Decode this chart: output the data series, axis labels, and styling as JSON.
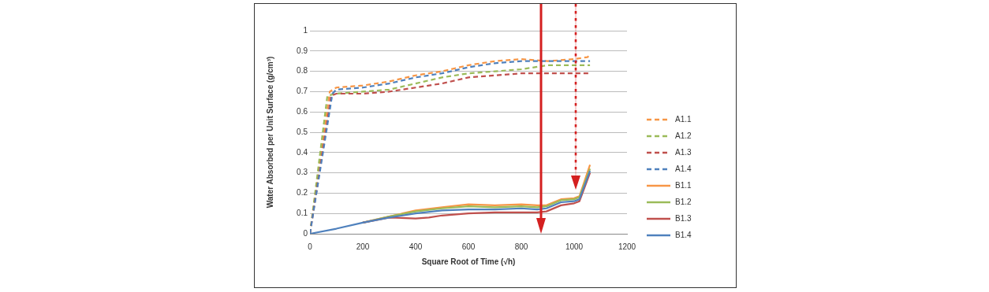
{
  "chart_data": {
    "type": "line",
    "xlabel": "Square Root of Time (√h)",
    "ylabel": "Water Absorbed per Unit Surface (g/cm³)",
    "xlim": [
      0,
      1200
    ],
    "xticks": [
      0,
      200,
      400,
      600,
      800,
      1000,
      1200
    ],
    "ylim": [
      0,
      1
    ],
    "yticks": [
      0,
      0.1,
      0.2,
      0.3,
      0.4,
      0.5,
      0.6,
      0.7,
      0.8,
      0.9,
      1
    ],
    "grid": "y",
    "legend": "right",
    "marker": "none",
    "series": [
      {
        "name": "A1.1",
        "color": "#f79646",
        "line_style": "dashed",
        "x": [
          0,
          75,
          100,
          200,
          300,
          400,
          500,
          600,
          700,
          800,
          900,
          1000,
          1050,
          1060
        ],
        "values": [
          0,
          0.7,
          0.72,
          0.73,
          0.75,
          0.78,
          0.8,
          0.83,
          0.85,
          0.86,
          0.85,
          0.86,
          0.87,
          0.88
        ]
      },
      {
        "name": "A1.2",
        "color": "#9bbb59",
        "line_style": "dashed",
        "x": [
          0,
          66,
          100,
          200,
          300,
          400,
          500,
          600,
          700,
          800,
          900,
          1060
        ],
        "values": [
          0,
          0.68,
          0.69,
          0.7,
          0.71,
          0.74,
          0.77,
          0.79,
          0.8,
          0.81,
          0.83,
          0.83
        ]
      },
      {
        "name": "A1.3",
        "color": "#c0504d",
        "line_style": "dashed",
        "x": [
          0,
          80,
          100,
          200,
          300,
          400,
          500,
          600,
          700,
          800,
          1060
        ],
        "values": [
          0,
          0.68,
          0.69,
          0.69,
          0.7,
          0.72,
          0.74,
          0.77,
          0.78,
          0.79,
          0.79
        ]
      },
      {
        "name": "A1.4",
        "color": "#4f81bd",
        "line_style": "dashed",
        "x": [
          0,
          85,
          100,
          200,
          300,
          400,
          500,
          600,
          700,
          800,
          900,
          1060
        ],
        "values": [
          0,
          0.69,
          0.71,
          0.72,
          0.74,
          0.77,
          0.79,
          0.82,
          0.84,
          0.85,
          0.85,
          0.85
        ]
      },
      {
        "name": "B1.1",
        "color": "#f79646",
        "line_style": "solid",
        "x": [
          200,
          300,
          400,
          500,
          600,
          700,
          800,
          860,
          895,
          950,
          1000,
          1020,
          1060
        ],
        "values": [
          0.055,
          0.085,
          0.115,
          0.13,
          0.145,
          0.14,
          0.145,
          0.14,
          0.14,
          0.17,
          0.175,
          0.185,
          0.34
        ]
      },
      {
        "name": "B1.2",
        "color": "#9bbb59",
        "line_style": "solid",
        "x": [
          200,
          300,
          400,
          500,
          600,
          700,
          800,
          860,
          895,
          950,
          1000,
          1020,
          1060
        ],
        "values": [
          0.055,
          0.085,
          0.11,
          0.125,
          0.135,
          0.13,
          0.135,
          0.13,
          0.135,
          0.165,
          0.17,
          0.18,
          0.32
        ]
      },
      {
        "name": "B1.3",
        "color": "#c0504d",
        "line_style": "solid",
        "x": [
          200,
          300,
          400,
          450,
          500,
          600,
          700,
          800,
          860,
          895,
          950,
          1000,
          1020,
          1060
        ],
        "values": [
          0.055,
          0.08,
          0.075,
          0.08,
          0.09,
          0.1,
          0.105,
          0.105,
          0.105,
          0.11,
          0.14,
          0.15,
          0.16,
          0.3
        ]
      },
      {
        "name": "B1.4",
        "color": "#4f81bd",
        "line_style": "solid",
        "x": [
          0,
          100,
          200,
          300,
          400,
          500,
          600,
          700,
          800,
          860,
          895,
          950,
          1000,
          1020,
          1060
        ],
        "values": [
          0,
          0.025,
          0.055,
          0.08,
          0.1,
          0.115,
          0.12,
          0.12,
          0.125,
          0.12,
          0.125,
          0.155,
          0.16,
          0.17,
          0.31
        ]
      }
    ]
  }
}
